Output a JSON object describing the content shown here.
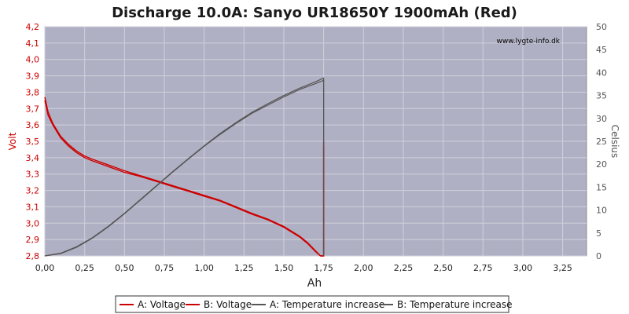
{
  "chart_data": {
    "type": "line",
    "title": "Discharge 10.0A: Sanyo UR18650Y 1900mAh (Red)",
    "watermark": "www.lygte-info.dk",
    "xlabel": "Ah",
    "ylabel_left": "Volt",
    "ylabel_right": "Celsius",
    "xlim": [
      0,
      3.4
    ],
    "ylim_left": [
      2.8,
      4.2
    ],
    "ylim_right": [
      0,
      50
    ],
    "x_ticks": [
      "0,00",
      "0,25",
      "0,50",
      "0,75",
      "1,00",
      "1,25",
      "1,50",
      "1,75",
      "2,00",
      "2,25",
      "2,50",
      "2,75",
      "3,00",
      "3,25"
    ],
    "y_left_ticks": [
      "2,8",
      "2,9",
      "3,0",
      "3,1",
      "3,2",
      "3,3",
      "3,4",
      "3,5",
      "3,6",
      "3,7",
      "3,8",
      "3,9",
      "4,0",
      "4,1",
      "4,2"
    ],
    "y_right_ticks": [
      "0",
      "5",
      "10",
      "15",
      "20",
      "25",
      "30",
      "35",
      "40",
      "45",
      "50"
    ],
    "grid": true,
    "legend_position": "bottom",
    "colors": {
      "plot_bg": "#b0b0c4",
      "grid": "#d0d0dc",
      "voltage": "#cc0000",
      "temperature": "#555555"
    },
    "series": [
      {
        "name": "A: Voltage",
        "axis": "left",
        "color": "#cc0000",
        "x": [
          0,
          0.02,
          0.05,
          0.1,
          0.15,
          0.2,
          0.25,
          0.3,
          0.4,
          0.5,
          0.6,
          0.7,
          0.75,
          0.8,
          0.9,
          1.0,
          1.1,
          1.2,
          1.3,
          1.4,
          1.5,
          1.6,
          1.65,
          1.7,
          1.73,
          1.75,
          1.75,
          1.75
        ],
        "y": [
          3.77,
          3.68,
          3.61,
          3.53,
          3.48,
          3.44,
          3.41,
          3.39,
          3.355,
          3.32,
          3.29,
          3.26,
          3.245,
          3.23,
          3.2,
          3.17,
          3.14,
          3.1,
          3.06,
          3.025,
          2.98,
          2.92,
          2.88,
          2.83,
          2.8,
          2.8,
          3.5,
          3.48
        ]
      },
      {
        "name": "B: Voltage",
        "axis": "left",
        "color": "#cc0000",
        "x": [
          0,
          0.02,
          0.05,
          0.1,
          0.15,
          0.2,
          0.25,
          0.3,
          0.4,
          0.5,
          0.6,
          0.7,
          0.75,
          0.8,
          0.9,
          1.0,
          1.1,
          1.2,
          1.3,
          1.4,
          1.5,
          1.6,
          1.65,
          1.7,
          1.73,
          1.75,
          1.75,
          1.75
        ],
        "y": [
          3.75,
          3.66,
          3.6,
          3.52,
          3.47,
          3.43,
          3.4,
          3.38,
          3.345,
          3.31,
          3.285,
          3.255,
          3.24,
          3.225,
          3.195,
          3.165,
          3.135,
          3.095,
          3.055,
          3.02,
          2.975,
          2.915,
          2.875,
          2.825,
          2.8,
          2.8,
          3.47,
          3.46
        ]
      },
      {
        "name": "A: Temperature increase",
        "axis": "right",
        "color": "#555555",
        "x": [
          0,
          0.1,
          0.2,
          0.3,
          0.4,
          0.5,
          0.6,
          0.7,
          0.8,
          0.9,
          1.0,
          1.1,
          1.2,
          1.3,
          1.4,
          1.5,
          1.6,
          1.7,
          1.75,
          1.75
        ],
        "y": [
          0,
          0.6,
          2,
          4,
          6.5,
          9.3,
          12.3,
          15.3,
          18.3,
          21.2,
          24,
          26.7,
          29.1,
          31.3,
          33.2,
          35,
          36.6,
          38,
          38.8,
          0
        ]
      },
      {
        "name": "B: Temperature increase",
        "axis": "right",
        "color": "#555555",
        "x": [
          0,
          0.1,
          0.2,
          0.3,
          0.4,
          0.5,
          0.6,
          0.7,
          0.8,
          0.9,
          1.0,
          1.1,
          1.2,
          1.3,
          1.4,
          1.5,
          1.6,
          1.7,
          1.75,
          1.75
        ],
        "y": [
          0,
          0.5,
          1.9,
          3.9,
          6.4,
          9.2,
          12.2,
          15.2,
          18.2,
          21.1,
          23.9,
          26.5,
          28.9,
          31.1,
          32.9,
          34.7,
          36.3,
          37.6,
          38.3,
          0
        ]
      }
    ]
  }
}
